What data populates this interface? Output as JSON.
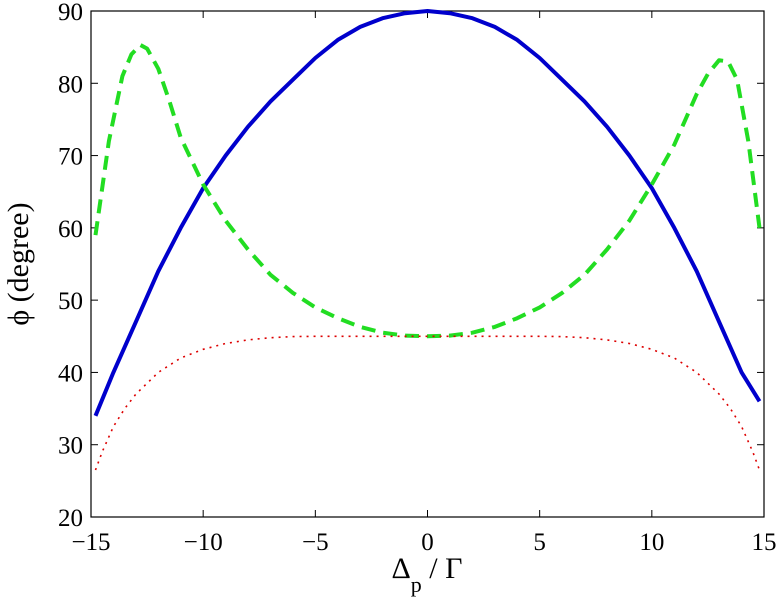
{
  "chart_data": {
    "type": "line",
    "xlabel_main": "Δ",
    "xlabel_sub": "p",
    "xlabel_rest": " / Γ",
    "ylabel": "ϕ (degree)",
    "xlim": [
      -15,
      15
    ],
    "ylim": [
      20,
      90
    ],
    "xticks": [
      -15,
      -10,
      -5,
      0,
      5,
      10,
      15
    ],
    "xtick_labels": [
      "−15",
      "−10",
      "−5",
      "0",
      "5",
      "10",
      "15"
    ],
    "yticks": [
      20,
      30,
      40,
      50,
      60,
      70,
      80,
      90
    ],
    "ytick_labels": [
      "20",
      "30",
      "40",
      "50",
      "60",
      "70",
      "80",
      "90"
    ],
    "grid": false,
    "legend": "none",
    "series": [
      {
        "style": "solid",
        "color": "#0000cc",
        "x": [
          -14.8,
          -14,
          -13,
          -12,
          -11,
          -10,
          -9,
          -8,
          -7,
          -6,
          -5,
          -4,
          -3,
          -2,
          -1,
          0,
          1,
          2,
          3,
          4,
          5,
          6,
          7,
          8,
          9,
          10,
          11,
          12,
          13,
          14,
          14.8
        ],
        "y": [
          34,
          40,
          47,
          54,
          60,
          65.5,
          70,
          74,
          77.5,
          80.5,
          83.5,
          86,
          87.8,
          89,
          89.7,
          90,
          89.7,
          89,
          87.8,
          86,
          83.5,
          80.5,
          77.5,
          74,
          70,
          65.5,
          60,
          54,
          47,
          40,
          36
        ]
      },
      {
        "style": "dashed",
        "color": "#22dd22",
        "x": [
          -14.8,
          -14.2,
          -13.6,
          -13.2,
          -12.8,
          -12.5,
          -12,
          -11.5,
          -11,
          -10,
          -9,
          -8,
          -7,
          -6,
          -5,
          -4,
          -3,
          -2,
          -1,
          0,
          1,
          2,
          3,
          4,
          5,
          6,
          7,
          8,
          9,
          10,
          11,
          11.5,
          12,
          12.5,
          13,
          13.4,
          13.8,
          14.3,
          14.8
        ],
        "y": [
          59,
          72,
          81,
          84,
          85.3,
          84.8,
          82,
          77.5,
          72.5,
          66,
          61,
          57,
          53.5,
          51,
          49,
          47.5,
          46.3,
          45.5,
          45.1,
          45,
          45.1,
          45.5,
          46.3,
          47.5,
          49,
          51,
          53.5,
          57,
          61,
          66,
          71.5,
          75,
          78.5,
          81.3,
          83.2,
          83,
          80.5,
          72,
          60
        ]
      },
      {
        "style": "dotted",
        "color": "#dd0000",
        "x": [
          -14.8,
          -14.5,
          -14,
          -13.5,
          -13,
          -12,
          -11,
          -10,
          -9,
          -8,
          -7,
          -6,
          -5,
          -4,
          -3,
          -2,
          -1,
          0,
          1,
          2,
          3,
          4,
          5,
          6,
          7,
          8,
          9,
          10,
          11,
          12,
          13,
          13.5,
          14,
          14.5,
          14.8
        ],
        "y": [
          26.5,
          29,
          32.5,
          35,
          37,
          40,
          42,
          43.2,
          44,
          44.5,
          44.8,
          44.95,
          45,
          45,
          45,
          45,
          45,
          45,
          45,
          45,
          45,
          45,
          45,
          44.95,
          44.8,
          44.5,
          44,
          43.2,
          42,
          40,
          37,
          35,
          32.5,
          29,
          26.5
        ]
      }
    ]
  }
}
